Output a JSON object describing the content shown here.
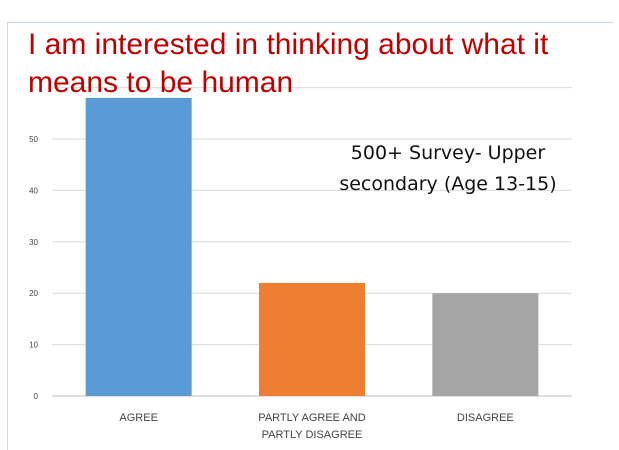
{
  "title": "I am interested in thinking about what it means to be human",
  "annotation": "500+ Survey- Upper secondary (Age 13-15)",
  "colors": {
    "title": "#c00000",
    "agree": "#5b9bd5",
    "partly": "#ed7d31",
    "disagree": "#a5a5a5",
    "grid": "#d9d9d9"
  },
  "chart_data": {
    "type": "bar",
    "categories": [
      "AGREE",
      "PARTLY AGREE AND PARTLY DISAGREE",
      "DISAGREE"
    ],
    "category_label_lines": [
      [
        "AGREE"
      ],
      [
        "PARTLY AGREE AND",
        "PARTLY DISAGREE"
      ],
      [
        "DISAGREE"
      ]
    ],
    "values": [
      58,
      22,
      20
    ],
    "ylim": [
      0,
      60
    ],
    "yticks": [
      0,
      10,
      20,
      30,
      40,
      50
    ],
    "grid": true,
    "bar_colors": [
      "#5b9bd5",
      "#ed7d31",
      "#a5a5a5"
    ],
    "title": "I am interested in thinking about what it means to be human",
    "xlabel": "",
    "ylabel": ""
  }
}
